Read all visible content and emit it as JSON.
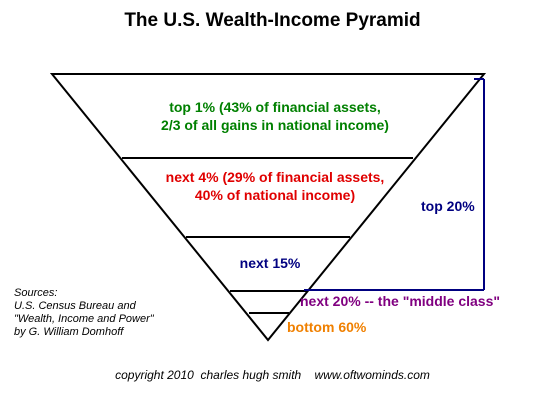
{
  "title": "The U.S. Wealth-Income Pyramid",
  "tiers": [
    {
      "line1": "top 1% (43% of financial assets,",
      "line2": "2/3 of all gains in national income)",
      "color": "#008000"
    },
    {
      "line1": "next 4% (29% of financial assets,",
      "line2": "40% of national income)",
      "color": "#e00000"
    },
    {
      "line1": "next 15%",
      "color": "#000080"
    },
    {
      "line1": "next 20% -- the \"middle class\"",
      "color": "#800080"
    },
    {
      "line1": "bottom 60%",
      "color": "#f08000"
    }
  ],
  "bracket": {
    "label": "top 20%",
    "color": "#000080"
  },
  "sources": {
    "heading": "Sources:",
    "lines": [
      "U.S. Census Bureau and",
      "\"Wealth, Income and Power\"",
      "by G. William Domhoff"
    ]
  },
  "copyright": "copyright 2010  charles hugh smith    www.oftwominds.com"
}
